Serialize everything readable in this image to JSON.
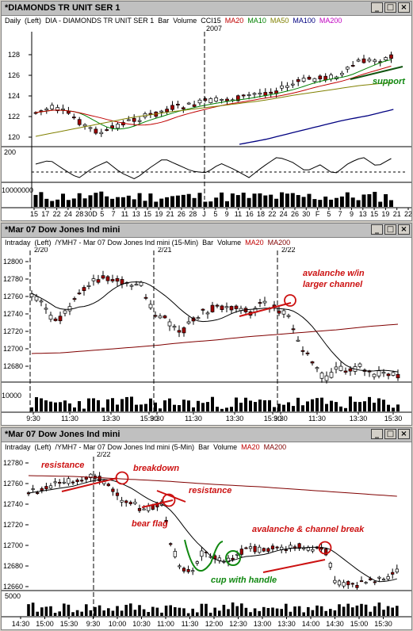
{
  "panel1": {
    "title": "*DIAMONDS TR UNIT SER 1",
    "legend": {
      "interval": "Daily",
      "axis": "(Left)",
      "symbol": "DIA - DIAMONDS TR UNIT SER 1",
      "bar": "Bar",
      "volume": "Volume",
      "cci": "CCI15",
      "ma20": "MA20",
      "ma10": "MA10",
      "ma50": "MA50",
      "ma100": "MA100",
      "ma200": "MA200"
    },
    "year_label": "2007",
    "price_ticks": [
      "128",
      "126",
      "124",
      "122",
      "120"
    ],
    "cci_tick": "200",
    "vol_tick": "10000000",
    "x_ticks": [
      "15",
      "17",
      "22",
      "24",
      "28",
      "30D",
      "5",
      "7",
      "11",
      "13",
      "15",
      "19",
      "21",
      "26",
      "28",
      "J",
      "5",
      "9",
      "11",
      "16",
      "18",
      "22",
      "24",
      "26",
      "30",
      "F",
      "5",
      "7",
      "9",
      "13",
      "15",
      "19",
      "21",
      "22"
    ],
    "annotation": "support",
    "colors": {
      "ma20": "#c00000",
      "ma10": "#008000",
      "ma50": "#808000",
      "ma100": "#000080",
      "ma200": "#c000c0",
      "up": "#ffffff",
      "down": "#a00000"
    }
  },
  "panel2": {
    "title": "*Mar 07  Dow Jones Ind mini",
    "legend": {
      "interval": "Intraday",
      "axis": "(Left)",
      "symbol": "/YMH7 - Mar 07  Dow Jones Ind mini (15-Min)",
      "bar": "Bar",
      "volume": "Volume",
      "ma20": "MA20",
      "ma200": "MA200"
    },
    "date_labels": [
      "2/20",
      "2/21",
      "2/22"
    ],
    "price_ticks": [
      "12800",
      "12780",
      "12760",
      "12740",
      "12720",
      "12700",
      "12680"
    ],
    "vol_tick": "10000",
    "x_ticks": [
      "9:30",
      "11:30",
      "13:30",
      "15:30",
      "9:30",
      "11:30",
      "13:30",
      "15:30",
      "9:30",
      "11:30",
      "13:30",
      "15:30"
    ],
    "annotation_line1": "avalanche w/in",
    "annotation_line2": "larger channel"
  },
  "panel3": {
    "title": "*Mar 07  Dow Jones Ind mini",
    "legend": {
      "interval": "Intraday",
      "axis": "(Left)",
      "symbol": "/YMH7 - Mar 07  Dow Jones Ind mini (5-Min)",
      "bar": "Bar",
      "volume": "Volume",
      "ma20": "MA20",
      "ma200": "MA200"
    },
    "date_label": "2/22",
    "price_ticks": [
      "12780",
      "12760",
      "12740",
      "12720",
      "12700",
      "12680",
      "12660"
    ],
    "vol_tick": "5000",
    "x_ticks": [
      "14:30",
      "15:00",
      "15:30",
      "9:30",
      "10:00",
      "10:30",
      "11:00",
      "11:30",
      "12:00",
      "12:30",
      "13:00",
      "13:30",
      "14:00",
      "14:30",
      "15:00",
      "15:30"
    ],
    "annotations": {
      "resistance1": "resistance",
      "breakdown": "breakdown",
      "resistance2": "resistance",
      "bear_flag": "bear flag",
      "avalanche": "avalanche & channel break",
      "cup": "cup with handle"
    }
  },
  "window_buttons": {
    "minimize": "_",
    "maximize": "□",
    "close": "×"
  }
}
